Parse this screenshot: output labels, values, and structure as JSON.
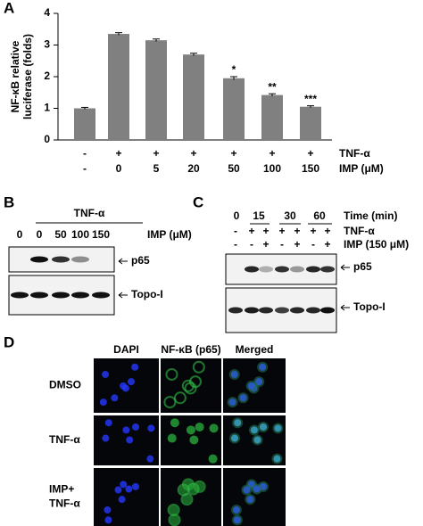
{
  "chart_data": {
    "type": "bar",
    "panel_label": "A",
    "y_label": [
      "NF-κB relative",
      "luciferase (folds)"
    ],
    "category_rows": [
      {
        "name": "TNF-α",
        "labels": [
          "-",
          "+",
          "+",
          "+",
          "+",
          "+",
          "+"
        ]
      },
      {
        "name": "IMP (μM)",
        "labels": [
          "-",
          "0",
          "5",
          "20",
          "50",
          "100",
          "150"
        ]
      }
    ],
    "values": [
      1.0,
      3.35,
      3.15,
      2.7,
      1.95,
      1.42,
      1.05
    ],
    "errors": [
      0.03,
      0.04,
      0.04,
      0.04,
      0.05,
      0.04,
      0.03
    ],
    "significance": [
      null,
      null,
      null,
      null,
      "*",
      "**",
      "***"
    ],
    "color": "#808080",
    "ylim": [
      0,
      4
    ],
    "yticks": [
      0,
      1,
      2,
      3,
      4
    ]
  },
  "panel_b": {
    "label": "B",
    "treatment": "TNF-α",
    "imp_labels": [
      "0",
      "0",
      "50",
      "100",
      "150"
    ],
    "imp_name": "IMP (μM)",
    "bands": [
      "p65",
      "Topo-I"
    ]
  },
  "panel_c": {
    "label": "C",
    "times": [
      "0",
      "15",
      "30",
      "60"
    ],
    "time_name": "Time (min)",
    "rows": [
      {
        "name": "TNF-α",
        "labels": [
          "-",
          "+",
          "+",
          "+",
          "+",
          "+",
          "+"
        ]
      },
      {
        "name": "IMP (150 μM)",
        "labels": [
          "-",
          "-",
          "+",
          "-",
          "+",
          "-",
          "+"
        ]
      }
    ],
    "bands": [
      "p65",
      "Topo-I"
    ]
  },
  "panel_d": {
    "label": "D",
    "columns": [
      "DAPI",
      "NF-κB (p65)",
      "Merged"
    ],
    "rows": [
      [
        "DMSO"
      ],
      [
        "TNF-α"
      ],
      [
        "IMP+",
        "TNF-α"
      ]
    ]
  }
}
